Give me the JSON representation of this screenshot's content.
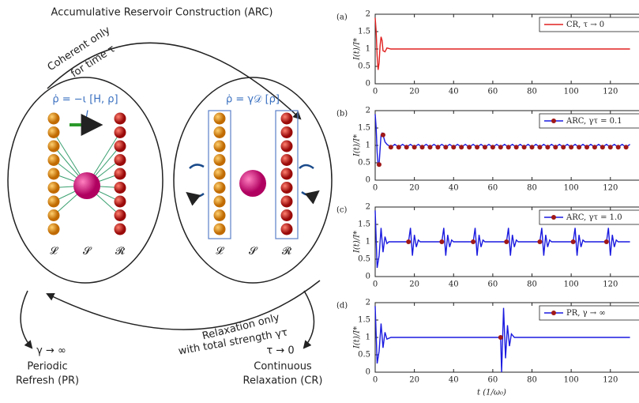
{
  "diagram": {
    "title": "Accumulative Reservoir Construction (ARC)",
    "top_arrow": [
      "Coherent only",
      "for time τ"
    ],
    "left_equation": "ρ̇ = −ι [H, ρ]",
    "current": "I",
    "right_equation": "ρ̇ = γ𝒟 [ρ]",
    "left_labels": [
      "𝓛",
      "𝓢",
      "𝓡"
    ],
    "right_labels": [
      "𝓛",
      "𝓢",
      "𝓡"
    ],
    "bottom_arrow": [
      "Relaxation only",
      "with total strength γτ"
    ],
    "left_limit": {
      "condition": "γ → ∞",
      "name": [
        "Periodic",
        "Refresh (PR)"
      ]
    },
    "right_limit": {
      "condition": "τ → 0",
      "name": [
        "Continuous",
        "Relaxation (CR)"
      ]
    }
  },
  "chart_data": [
    {
      "type": "line",
      "panel_label": "(a)",
      "ylabel": "I(t)/I*",
      "xlim": [
        0,
        135
      ],
      "xticks": [
        0,
        20,
        40,
        60,
        80,
        100,
        120
      ],
      "ylim": [
        0,
        2
      ],
      "yticks": [
        0,
        0.5,
        1,
        1.5,
        2
      ],
      "legend": "upper right",
      "series": [
        {
          "name": "CR, τ → 0",
          "color": "#e02020",
          "x": [
            0,
            0.5,
            1,
            1.5,
            2,
            2.5,
            3,
            3.5,
            4,
            5,
            6,
            8,
            130
          ],
          "values": [
            1.9,
            1.5,
            0.8,
            0.4,
            0.6,
            1.1,
            1.35,
            1.25,
            0.95,
            0.92,
            1.03,
            1,
            1
          ]
        }
      ]
    },
    {
      "type": "line",
      "panel_label": "(b)",
      "ylabel": "I(t)/I*",
      "xlim": [
        0,
        135
      ],
      "xticks": [
        0,
        20,
        40,
        60,
        80,
        100,
        120
      ],
      "ylim": [
        0,
        2
      ],
      "yticks": [
        0,
        0.5,
        1,
        1.5,
        2
      ],
      "legend": "upper right",
      "series": [
        {
          "name": "ARC, γτ = 0.1",
          "color": "#1a1ae0",
          "x": [
            0,
            0.5,
            1,
            1.5,
            2,
            2.5,
            3,
            3.5,
            4,
            5,
            6,
            8,
            10,
            12,
            14,
            16,
            18,
            20,
            22,
            24,
            26,
            28,
            30,
            32,
            34,
            36,
            38,
            40,
            42,
            44,
            46,
            48,
            50,
            52,
            54,
            56,
            58,
            60,
            62,
            64,
            66,
            68,
            70,
            72,
            74,
            76,
            78,
            80,
            82,
            84,
            86,
            88,
            90,
            92,
            94,
            96,
            98,
            100,
            102,
            104,
            106,
            108,
            110,
            112,
            114,
            116,
            118,
            120,
            122,
            124,
            126,
            128,
            130
          ],
          "values": [
            1.9,
            1.5,
            0.8,
            0.45,
            0.45,
            0.9,
            1.3,
            1.35,
            1.3,
            1.1,
            1.03,
            0.95,
            1.03,
            0.95,
            1.03,
            0.95,
            1.03,
            0.95,
            1.03,
            0.95,
            1.03,
            0.95,
            1.03,
            0.95,
            1.03,
            0.95,
            1.03,
            0.95,
            1.03,
            0.95,
            1.03,
            0.95,
            1.03,
            0.95,
            1.03,
            0.95,
            1.03,
            0.95,
            1.03,
            0.95,
            1.03,
            0.95,
            1.03,
            0.95,
            1.03,
            0.95,
            1.03,
            0.95,
            1.03,
            0.95,
            1.03,
            0.95,
            1.03,
            0.95,
            1.03,
            0.95,
            1.03,
            0.95,
            1.03,
            0.95,
            1.03,
            0.95,
            1.03,
            0.95,
            1.03,
            0.95,
            1.03,
            0.95,
            1.03,
            0.95,
            1.03,
            0.95,
            1.03
          ],
          "markers": {
            "color": "#a01818",
            "x": [
              2,
              4,
              8,
              12,
              16,
              20,
              24,
              28,
              32,
              36,
              40,
              44,
              48,
              52,
              56,
              60,
              64,
              68,
              72,
              76,
              80,
              84,
              88,
              92,
              96,
              100,
              104,
              108,
              112,
              116,
              120,
              124,
              128
            ],
            "values": [
              0.45,
              1.3,
              0.95,
              0.95,
              0.95,
              0.95,
              0.95,
              0.95,
              0.95,
              0.95,
              0.95,
              0.95,
              0.95,
              0.95,
              0.95,
              0.95,
              0.95,
              0.95,
              0.95,
              0.95,
              0.95,
              0.95,
              0.95,
              0.95,
              0.95,
              0.95,
              0.95,
              0.95,
              0.95,
              0.95,
              0.95,
              0.95,
              0.95
            ]
          }
        }
      ]
    },
    {
      "type": "line",
      "panel_label": "(c)",
      "ylabel": "I(t)/I*",
      "xlim": [
        0,
        135
      ],
      "xticks": [
        0,
        20,
        40,
        60,
        80,
        100,
        120
      ],
      "ylim": [
        0,
        2
      ],
      "yticks": [
        0,
        0.5,
        1,
        1.5,
        2
      ],
      "legend": "upper right",
      "series": [
        {
          "name": "ARC, γτ = 1.0",
          "color": "#1a1ae0",
          "x": [
            0,
            1,
            2,
            3,
            4,
            5,
            6,
            7,
            17,
            18,
            19,
            20,
            21,
            22,
            23,
            34,
            35,
            36,
            37,
            38,
            39,
            40,
            50,
            51,
            52,
            53,
            54,
            55,
            56,
            67,
            68,
            69,
            70,
            71,
            72,
            73,
            84,
            85,
            86,
            87,
            88,
            89,
            90,
            101,
            102,
            103,
            104,
            105,
            106,
            107,
            118,
            119,
            120,
            121,
            122,
            123,
            124,
            130
          ],
          "values": [
            1.9,
            0.25,
            0.6,
            1.4,
            0.7,
            1.15,
            0.95,
            1,
            1,
            1.4,
            0.6,
            1.2,
            0.85,
            1.05,
            1,
            1,
            1.4,
            0.6,
            1.2,
            0.85,
            1.05,
            1,
            1,
            1.4,
            0.6,
            1.2,
            0.85,
            1.05,
            1,
            1,
            1.4,
            0.6,
            1.2,
            0.85,
            1.05,
            1,
            1,
            1.4,
            0.6,
            1.2,
            0.85,
            1.05,
            1,
            1,
            1.4,
            0.6,
            1.2,
            0.85,
            1.05,
            1,
            1,
            1.4,
            0.6,
            1.2,
            0.85,
            1.05,
            1,
            1
          ],
          "markers": {
            "color": "#a01818",
            "x": [
              17,
              34,
              50,
              67,
              84,
              101,
              118
            ],
            "values": [
              1,
              1,
              1,
              1,
              1,
              1,
              1
            ]
          }
        }
      ]
    },
    {
      "type": "line",
      "panel_label": "(d)",
      "ylabel": "I(t)/I*",
      "xlabel": "t (1/ω₀)",
      "xlim": [
        0,
        135
      ],
      "xticks": [
        0,
        20,
        40,
        60,
        80,
        100,
        120
      ],
      "ylim": [
        0,
        2
      ],
      "yticks": [
        0,
        0.5,
        1,
        1.5,
        2
      ],
      "legend": "upper right",
      "series": [
        {
          "name": "PR, γ → ∞",
          "color": "#1a1ae0",
          "x": [
            0,
            1,
            2,
            3,
            4,
            5,
            6,
            8,
            64,
            64.5,
            65.5,
            66.5,
            67.5,
            68.5,
            69.5,
            71,
            130
          ],
          "values": [
            1.9,
            0.25,
            0.6,
            1.4,
            0.7,
            1.15,
            0.95,
            1,
            1,
            0,
            1.85,
            0.4,
            1.35,
            0.75,
            1.1,
            1,
            1
          ],
          "markers": {
            "color": "#a01818",
            "x": [
              64
            ],
            "values": [
              1
            ]
          }
        }
      ]
    }
  ]
}
